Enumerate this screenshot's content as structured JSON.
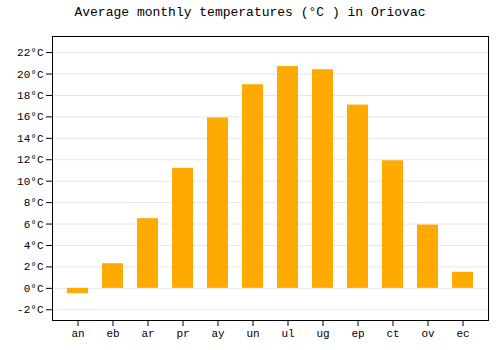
{
  "chart_data": {
    "type": "bar",
    "title": "Average monthly temperatures (°C ) in Oriovac",
    "categories": [
      "an",
      "eb",
      "ar",
      "pr",
      "ay",
      "un",
      "ul",
      "ug",
      "ep",
      "ct",
      "ov",
      "ec"
    ],
    "values": [
      -0.5,
      2.3,
      6.5,
      11.2,
      15.9,
      19.0,
      20.7,
      20.4,
      17.1,
      11.9,
      5.9,
      1.5
    ],
    "color": "#FFAA00",
    "ylim": [
      -3.0,
      23.5
    ],
    "yticks": [
      {
        "value": -2,
        "label": "-2°C"
      },
      {
        "value": 0,
        "label": "0°C"
      },
      {
        "value": 2,
        "label": "2°C"
      },
      {
        "value": 4,
        "label": "4°C"
      },
      {
        "value": 6,
        "label": "6°C"
      },
      {
        "value": 8,
        "label": "8°C"
      },
      {
        "value": 10,
        "label": "10°C"
      },
      {
        "value": 12,
        "label": "12°C"
      },
      {
        "value": 14,
        "label": "14°C"
      },
      {
        "value": 16,
        "label": "16°C"
      },
      {
        "value": 18,
        "label": "18°C"
      },
      {
        "value": 20,
        "label": "20°C"
      },
      {
        "value": 22,
        "label": "22°C"
      }
    ],
    "grid": true
  }
}
